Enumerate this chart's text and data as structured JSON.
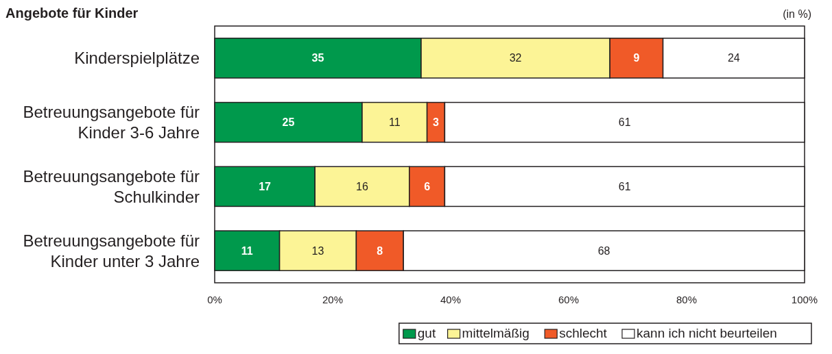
{
  "chart_data": {
    "type": "bar",
    "orientation": "horizontal",
    "stacked": true,
    "title": "Angebote für Kinder",
    "subtitle": "(in %)",
    "categories": [
      "Kinderspielplätze",
      "Betreuungsangebote für\nKinder 3-6 Jahre",
      "Betreuungsangebote für\nSchulkinder",
      "Betreuungsangebote für\nKinder unter 3 Jahre"
    ],
    "series": [
      {
        "name": "gut",
        "color": "#00994c",
        "values": [
          35,
          25,
          17,
          11
        ]
      },
      {
        "name": "mittelmäßig",
        "color": "#fcf496",
        "values": [
          32,
          11,
          16,
          13
        ]
      },
      {
        "name": "schlecht",
        "color": "#f05a28",
        "values": [
          9,
          3,
          6,
          8
        ]
      },
      {
        "name": "kann ich nicht beurteilen",
        "color": "#ffffff",
        "values": [
          24,
          61,
          61,
          68
        ]
      }
    ],
    "xlim": [
      0,
      100
    ],
    "xticks": [
      {
        "value": 0,
        "label": "0%"
      },
      {
        "value": 20,
        "label": "20%"
      },
      {
        "value": 40,
        "label": "40%"
      },
      {
        "value": 60,
        "label": "60%"
      },
      {
        "value": 80,
        "label": "80%"
      },
      {
        "value": 100,
        "label": "100%"
      }
    ],
    "data_labels": true,
    "legend": "bottom right",
    "grid": false
  }
}
